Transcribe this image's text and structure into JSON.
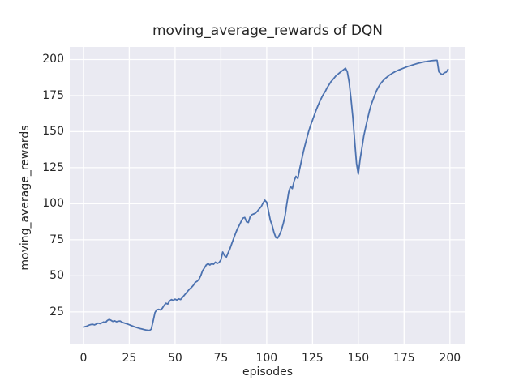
{
  "chart_data": {
    "type": "line",
    "title": "moving_average_rewards of DQN",
    "xlabel": "episodes",
    "ylabel": "moving_average_rewards",
    "x_ticks": [
      0,
      25,
      50,
      75,
      100,
      125,
      150,
      175,
      200
    ],
    "y_ticks": [
      25,
      50,
      75,
      100,
      125,
      150,
      175,
      200
    ],
    "xlim": [
      -7.5,
      208.5
    ],
    "ylim": [
      3.0,
      208.7
    ],
    "grid": true,
    "legend_position": "none",
    "colors": {
      "line": "#4c72b0",
      "axes_background": "#eaeaf2",
      "gridline": "#ffffff",
      "figure_background": "#ffffff",
      "text": "#262626"
    },
    "series": [
      {
        "name": "moving_average_rewards",
        "points": [
          [
            0,
            14.5
          ],
          [
            1,
            14.8
          ],
          [
            2,
            15.2
          ],
          [
            3,
            15.8
          ],
          [
            4,
            16.2
          ],
          [
            5,
            16.4
          ],
          [
            6,
            16.0
          ],
          [
            7,
            16.6
          ],
          [
            8,
            17.2
          ],
          [
            9,
            16.8
          ],
          [
            10,
            17.4
          ],
          [
            11,
            18.0
          ],
          [
            12,
            17.6
          ],
          [
            13,
            19.0
          ],
          [
            14,
            19.8
          ],
          [
            15,
            19.2
          ],
          [
            16,
            18.4
          ],
          [
            17,
            18.8
          ],
          [
            18,
            18.2
          ],
          [
            19,
            18.5
          ],
          [
            20,
            18.7
          ],
          [
            21,
            17.9
          ],
          [
            22,
            17.4
          ],
          [
            23,
            17.0
          ],
          [
            24,
            16.6
          ],
          [
            25,
            16.1
          ],
          [
            26,
            15.6
          ],
          [
            27,
            15.1
          ],
          [
            28,
            14.6
          ],
          [
            29,
            14.2
          ],
          [
            30,
            13.8
          ],
          [
            31,
            13.4
          ],
          [
            32,
            13.1
          ],
          [
            33,
            12.8
          ],
          [
            34,
            12.5
          ],
          [
            35,
            12.3
          ],
          [
            36,
            12.1
          ],
          [
            37,
            13.0
          ],
          [
            38,
            18.5
          ],
          [
            39,
            24.5
          ],
          [
            40,
            26.5
          ],
          [
            41,
            26.8
          ],
          [
            42,
            26.4
          ],
          [
            43,
            27.5
          ],
          [
            44,
            29.5
          ],
          [
            45,
            31.0
          ],
          [
            46,
            30.5
          ],
          [
            47,
            32.5
          ],
          [
            48,
            33.5
          ],
          [
            49,
            33.0
          ],
          [
            50,
            33.8
          ],
          [
            51,
            33.2
          ],
          [
            52,
            34.0
          ],
          [
            53,
            33.6
          ],
          [
            54,
            35.0
          ],
          [
            55,
            36.5
          ],
          [
            56,
            38.0
          ],
          [
            57,
            39.5
          ],
          [
            58,
            41.0
          ],
          [
            59,
            42.0
          ],
          [
            60,
            43.5
          ],
          [
            61,
            45.5
          ],
          [
            62,
            46.2
          ],
          [
            63,
            47.5
          ],
          [
            64,
            50.0
          ],
          [
            65,
            53.5
          ],
          [
            66,
            55.5
          ],
          [
            67,
            57.5
          ],
          [
            68,
            58.5
          ],
          [
            69,
            57.5
          ],
          [
            70,
            58.5
          ],
          [
            71,
            58.0
          ],
          [
            72,
            59.5
          ],
          [
            73,
            58.6
          ],
          [
            74,
            59.2
          ],
          [
            75,
            61.0
          ],
          [
            76,
            66.5
          ],
          [
            77,
            64.0
          ],
          [
            78,
            63.0
          ],
          [
            79,
            66.0
          ],
          [
            80,
            69.0
          ],
          [
            81,
            72.5
          ],
          [
            82,
            76.0
          ],
          [
            83,
            79.5
          ],
          [
            84,
            82.5
          ],
          [
            85,
            85.0
          ],
          [
            86,
            87.5
          ],
          [
            87,
            90.0
          ],
          [
            88,
            90.5
          ],
          [
            89,
            87.5
          ],
          [
            90,
            87.0
          ],
          [
            91,
            91.0
          ],
          [
            92,
            92.5
          ],
          [
            93,
            93.0
          ],
          [
            94,
            93.6
          ],
          [
            95,
            95.0
          ],
          [
            96,
            96.5
          ],
          [
            97,
            98.0
          ],
          [
            98,
            100.5
          ],
          [
            99,
            102.5
          ],
          [
            100,
            101.0
          ],
          [
            101,
            95.0
          ],
          [
            102,
            88.5
          ],
          [
            103,
            85.0
          ],
          [
            104,
            80.0
          ],
          [
            105,
            76.5
          ],
          [
            106,
            76.2
          ],
          [
            107,
            78.5
          ],
          [
            108,
            81.5
          ],
          [
            109,
            86.0
          ],
          [
            110,
            91.5
          ],
          [
            111,
            100.0
          ],
          [
            112,
            108.0
          ],
          [
            113,
            112.0
          ],
          [
            114,
            110.5
          ],
          [
            115,
            116.0
          ],
          [
            116,
            119.0
          ],
          [
            117,
            117.5
          ],
          [
            118,
            124.0
          ],
          [
            119,
            130.0
          ],
          [
            120,
            136.0
          ],
          [
            121,
            141.0
          ],
          [
            122,
            146.0
          ],
          [
            123,
            150.5
          ],
          [
            124,
            154.5
          ],
          [
            125,
            158.0
          ],
          [
            126,
            161.5
          ],
          [
            127,
            165.0
          ],
          [
            128,
            168.0
          ],
          [
            129,
            171.0
          ],
          [
            130,
            173.5
          ],
          [
            131,
            176.0
          ],
          [
            132,
            178.0
          ],
          [
            133,
            180.5
          ],
          [
            134,
            182.5
          ],
          [
            135,
            184.5
          ],
          [
            136,
            186.0
          ],
          [
            137,
            187.5
          ],
          [
            138,
            189.0
          ],
          [
            139,
            190.0
          ],
          [
            140,
            191.0
          ],
          [
            141,
            192.0
          ],
          [
            142,
            193.0
          ],
          [
            143,
            194.0
          ],
          [
            144,
            191.5
          ],
          [
            145,
            184.5
          ],
          [
            146,
            173.0
          ],
          [
            147,
            160.0
          ],
          [
            148,
            144.0
          ],
          [
            149,
            128.0
          ],
          [
            150,
            120.5
          ],
          [
            151,
            131.0
          ],
          [
            152,
            139.0
          ],
          [
            153,
            147.0
          ],
          [
            154,
            153.0
          ],
          [
            155,
            158.5
          ],
          [
            156,
            164.0
          ],
          [
            157,
            168.5
          ],
          [
            158,
            172.0
          ],
          [
            159,
            175.5
          ],
          [
            160,
            178.5
          ],
          [
            161,
            181.0
          ],
          [
            162,
            183.0
          ],
          [
            163,
            184.6
          ],
          [
            164,
            186.0
          ],
          [
            165,
            187.2
          ],
          [
            166,
            188.2
          ],
          [
            167,
            189.2
          ],
          [
            168,
            190.0
          ],
          [
            169,
            190.8
          ],
          [
            170,
            191.5
          ],
          [
            171,
            192.1
          ],
          [
            172,
            192.7
          ],
          [
            173,
            193.2
          ],
          [
            174,
            193.7
          ],
          [
            175,
            194.2
          ],
          [
            176,
            194.7
          ],
          [
            177,
            195.2
          ],
          [
            178,
            195.6
          ],
          [
            179,
            196.0
          ],
          [
            180,
            196.4
          ],
          [
            181,
            196.8
          ],
          [
            182,
            197.2
          ],
          [
            183,
            197.5
          ],
          [
            184,
            197.8
          ],
          [
            185,
            198.1
          ],
          [
            186,
            198.4
          ],
          [
            187,
            198.6
          ],
          [
            188,
            198.8
          ],
          [
            189,
            199.0
          ],
          [
            190,
            199.2
          ],
          [
            191,
            199.3
          ],
          [
            192,
            199.4
          ],
          [
            193,
            199.5
          ],
          [
            194,
            191.5
          ],
          [
            195,
            190.2
          ],
          [
            196,
            189.6
          ],
          [
            197,
            190.8
          ],
          [
            198,
            191.3
          ],
          [
            199,
            193.2
          ]
        ]
      }
    ]
  }
}
